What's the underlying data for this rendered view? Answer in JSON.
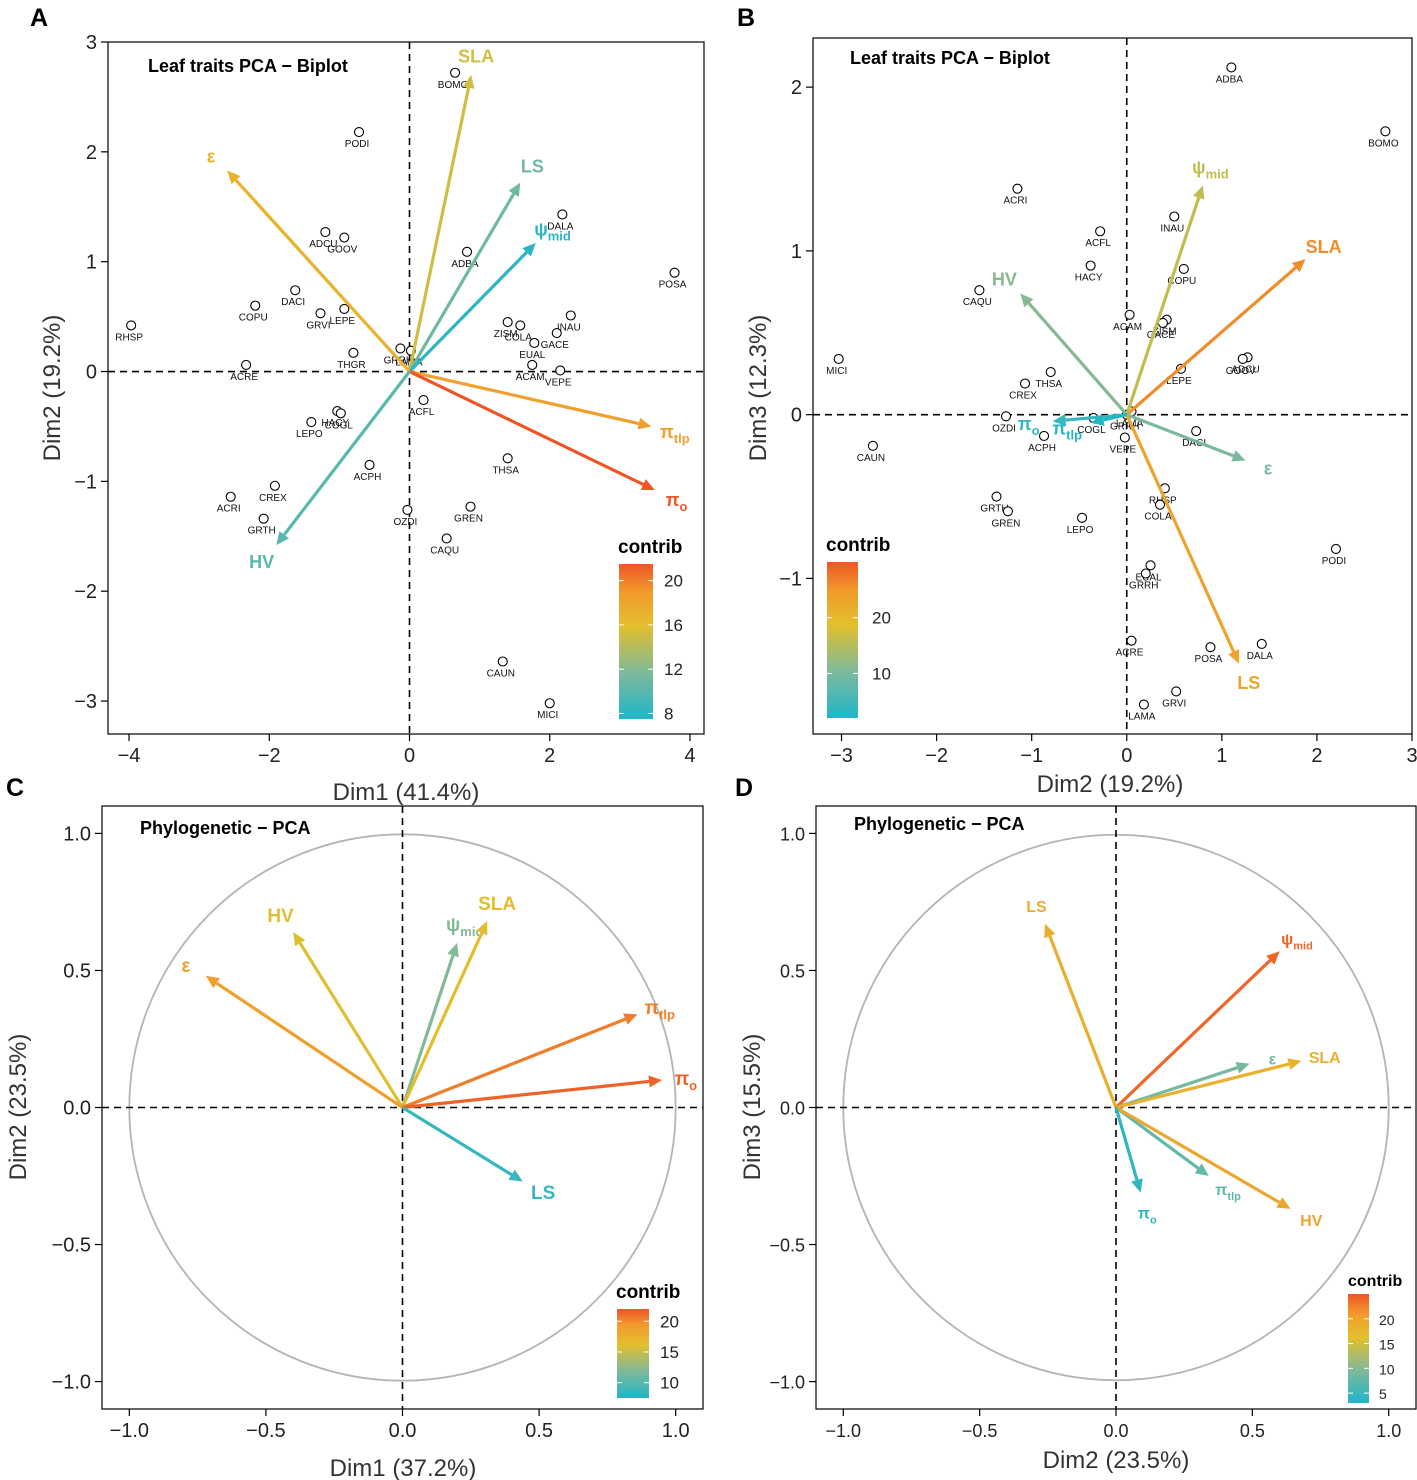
{
  "figure": {
    "panel_labels": [
      "A",
      "B",
      "C",
      "D"
    ]
  },
  "legend": {
    "title": "contrib"
  },
  "chart_data": [
    {
      "panel": "A",
      "type": "scatter",
      "title": "Leaf traits PCA − Biplot",
      "xlabel": "Dim1 (41.4%)",
      "ylabel": "Dim2 (19.2%)",
      "xlim": [
        -4.3,
        4.2
      ],
      "ylim": [
        -3.3,
        3.0
      ],
      "xticks": [
        -4,
        -2,
        0,
        2,
        4
      ],
      "yticks": [
        -3,
        -2,
        -1,
        0,
        1,
        2,
        3
      ],
      "points": [
        {
          "label": "BOMO",
          "x": 0.65,
          "y": 2.72
        },
        {
          "label": "PODI",
          "x": -0.72,
          "y": 2.18
        },
        {
          "label": "DALA",
          "x": 2.18,
          "y": 1.43
        },
        {
          "label": "ADCU",
          "x": -1.2,
          "y": 1.27
        },
        {
          "label": "GOOV",
          "x": -0.93,
          "y": 1.22
        },
        {
          "label": "ADBA",
          "x": 0.82,
          "y": 1.09
        },
        {
          "label": "POSA",
          "x": 3.78,
          "y": 0.9
        },
        {
          "label": "DACI",
          "x": -1.63,
          "y": 0.74
        },
        {
          "label": "LEPE",
          "x": -0.93,
          "y": 0.57
        },
        {
          "label": "COPU",
          "x": -2.2,
          "y": 0.6
        },
        {
          "label": "GRVI",
          "x": -1.27,
          "y": 0.53
        },
        {
          "label": "INAU",
          "x": 2.3,
          "y": 0.51
        },
        {
          "label": "ZISM",
          "x": 1.4,
          "y": 0.45
        },
        {
          "label": "COLA",
          "x": 1.58,
          "y": 0.42
        },
        {
          "label": "GACE",
          "x": 2.1,
          "y": 0.35
        },
        {
          "label": "RHSP",
          "x": -3.97,
          "y": 0.42
        },
        {
          "label": "GRRH",
          "x": -0.13,
          "y": 0.21
        },
        {
          "label": "THGR",
          "x": -0.8,
          "y": 0.17
        },
        {
          "label": "LAMA",
          "x": 0.02,
          "y": 0.19
        },
        {
          "label": "EUAL",
          "x": 1.78,
          "y": 0.26
        },
        {
          "label": "ACAM",
          "x": 1.75,
          "y": 0.06
        },
        {
          "label": "VEPE",
          "x": 2.15,
          "y": 0.01
        },
        {
          "label": "ACRE",
          "x": -2.33,
          "y": 0.06
        },
        {
          "label": "HACY",
          "x": -1.03,
          "y": -0.36
        },
        {
          "label": "COGL",
          "x": -0.98,
          "y": -0.38
        },
        {
          "label": "LEPO",
          "x": -1.4,
          "y": -0.46
        },
        {
          "label": "ACFL",
          "x": 0.2,
          "y": -0.26
        },
        {
          "label": "THSA",
          "x": 1.4,
          "y": -0.79
        },
        {
          "label": "ACPH",
          "x": -0.57,
          "y": -0.85
        },
        {
          "label": "CREX",
          "x": -1.92,
          "y": -1.04
        },
        {
          "label": "ACRI",
          "x": -2.55,
          "y": -1.14
        },
        {
          "label": "GRTH",
          "x": -2.08,
          "y": -1.34
        },
        {
          "label": "OZDI",
          "x": -0.03,
          "y": -1.26
        },
        {
          "label": "GREN",
          "x": 0.87,
          "y": -1.23
        },
        {
          "label": "CAQU",
          "x": 0.53,
          "y": -1.52
        },
        {
          "label": "CAUN",
          "x": 1.33,
          "y": -2.64
        },
        {
          "label": "MICI",
          "x": 2.0,
          "y": -3.02
        }
      ],
      "vectors": [
        {
          "label": "SLA",
          "x": 0.88,
          "y": 2.7,
          "contrib": 15.0
        },
        {
          "label": "LS",
          "x": 1.58,
          "y": 1.72,
          "contrib": 11.0
        },
        {
          "label": "ψ",
          "sub": "mid",
          "x": 1.8,
          "y": 1.17,
          "contrib": 8.0
        },
        {
          "label": "ε",
          "sub": "",
          "x": -2.6,
          "y": 1.83,
          "contrib": 17.0
        },
        {
          "label": "π",
          "sub": "tlp",
          "x": 3.45,
          "y": -0.5,
          "contrib": 18.5
        },
        {
          "label": "π",
          "sub": "o",
          "x": 3.5,
          "y": -1.08,
          "contrib": 21.5
        },
        {
          "label": "HV",
          "x": -1.9,
          "y": -1.58,
          "contrib": 10.0
        }
      ],
      "legend": {
        "ticks": [
          8,
          12,
          16,
          20
        ],
        "range": [
          7.5,
          21.5
        ]
      }
    },
    {
      "panel": "B",
      "type": "scatter",
      "title": "Leaf traits PCA − Biplot",
      "xlabel": "Dim2 (19.2%)",
      "ylabel": "Dim3 (12.3%)",
      "xlim": [
        -3.3,
        3.0
      ],
      "ylim": [
        -1.95,
        2.3
      ],
      "xticks": [
        -3,
        -2,
        -1,
        0,
        1,
        2,
        3
      ],
      "yticks": [
        -1,
        0,
        1,
        2
      ],
      "points": [
        {
          "label": "ADBA",
          "x": 1.1,
          "y": 2.12
        },
        {
          "label": "BOMO",
          "x": 2.72,
          "y": 1.73
        },
        {
          "label": "ACRI",
          "x": -1.15,
          "y": 1.38
        },
        {
          "label": "INAU",
          "x": 0.5,
          "y": 1.21
        },
        {
          "label": "ACFL",
          "x": -0.28,
          "y": 1.12
        },
        {
          "label": "HACY",
          "x": -0.38,
          "y": 0.91
        },
        {
          "label": "COPU",
          "x": 0.6,
          "y": 0.89
        },
        {
          "label": "CAQU",
          "x": -1.55,
          "y": 0.76
        },
        {
          "label": "ACAM",
          "x": 0.03,
          "y": 0.61
        },
        {
          "label": "ZISM",
          "x": 0.42,
          "y": 0.58
        },
        {
          "label": "GACE",
          "x": 0.38,
          "y": 0.56
        },
        {
          "label": "MICI",
          "x": -3.03,
          "y": 0.34
        },
        {
          "label": "ADCU",
          "x": 1.27,
          "y": 0.35
        },
        {
          "label": "GOOV",
          "x": 1.22,
          "y": 0.34
        },
        {
          "label": "LEPE",
          "x": 0.57,
          "y": 0.28
        },
        {
          "label": "THSA",
          "x": -0.8,
          "y": 0.26
        },
        {
          "label": "CREX",
          "x": -1.07,
          "y": 0.19
        },
        {
          "label": "GRRH",
          "x": 0.0,
          "y": 0.0
        },
        {
          "label": "LAMA",
          "x": 0.05,
          "y": 0.02
        },
        {
          "label": "OZDI",
          "x": -1.27,
          "y": -0.01
        },
        {
          "label": "COGL",
          "x": -0.35,
          "y": -0.02
        },
        {
          "label": "ACPH",
          "x": -0.87,
          "y": -0.13
        },
        {
          "label": "VEPE",
          "x": -0.02,
          "y": -0.14
        },
        {
          "label": "DACI",
          "x": 0.73,
          "y": -0.1
        },
        {
          "label": "CAUN",
          "x": -2.67,
          "y": -0.19
        },
        {
          "label": "RHSP",
          "x": 0.4,
          "y": -0.45
        },
        {
          "label": "GRTH",
          "x": -1.37,
          "y": -0.5
        },
        {
          "label": "GREN",
          "x": -1.25,
          "y": -0.59
        },
        {
          "label": "COLA",
          "x": 0.35,
          "y": -0.55
        },
        {
          "label": "LEPO",
          "x": -0.47,
          "y": -0.63
        },
        {
          "label": "PODI",
          "x": 2.2,
          "y": -0.82
        },
        {
          "label": "EUAL",
          "x": 0.25,
          "y": -0.92
        },
        {
          "label": "GRRH",
          "x": 0.2,
          "y": -0.97
        },
        {
          "label": "ACRE",
          "x": 0.05,
          "y": -1.38
        },
        {
          "label": "POSA",
          "x": 0.88,
          "y": -1.42
        },
        {
          "label": "DALA",
          "x": 1.42,
          "y": -1.4
        },
        {
          "label": "GRVI",
          "x": 0.52,
          "y": -1.69
        },
        {
          "label": "LAMA",
          "x": 0.18,
          "y": -1.77
        }
      ],
      "vectors": [
        {
          "label": "SLA",
          "x": 1.88,
          "y": 0.95,
          "contrib": 26.0
        },
        {
          "label": "ψ",
          "sub": "mid",
          "x": 0.8,
          "y": 1.4,
          "contrib": 16.0
        },
        {
          "label": "HV",
          "x": -1.12,
          "y": 0.74,
          "contrib": 11.0
        },
        {
          "label": "ε",
          "sub": "",
          "x": 1.25,
          "y": -0.28,
          "contrib": 10.0
        },
        {
          "label": "LS",
          "x": 1.18,
          "y": -1.52,
          "contrib": 23.5
        },
        {
          "label": "π",
          "sub": "o",
          "x": -0.78,
          "y": -0.04,
          "contrib": 4.0
        },
        {
          "label": "π",
          "sub": "tlp",
          "x": -0.38,
          "y": -0.05,
          "contrib": 2.5
        }
      ],
      "legend": {
        "ticks": [
          10,
          20
        ],
        "range": [
          2,
          30
        ]
      }
    },
    {
      "panel": "C",
      "type": "scatter",
      "title": "Phylogenetic − PCA",
      "xlabel": "Dim1 (37.2%)",
      "ylabel": "Dim2 (23.5%)",
      "xlim": [
        -1.1,
        1.1
      ],
      "ylim": [
        -1.1,
        1.1
      ],
      "xticks": [
        -1.0,
        -0.5,
        0.0,
        0.5,
        1.0
      ],
      "yticks": [
        -1.0,
        -0.5,
        0.0,
        0.5,
        1.0
      ],
      "vectors": [
        {
          "label": "HV",
          "x": -0.4,
          "y": 0.64,
          "contrib": 16.0
        },
        {
          "label": "ψ",
          "sub": "mid",
          "x": 0.2,
          "y": 0.6,
          "contrib": 12.0
        },
        {
          "label": "SLA",
          "x": 0.31,
          "y": 0.68,
          "contrib": 16.5
        },
        {
          "label": "ε",
          "sub": "",
          "x": -0.72,
          "y": 0.48,
          "contrib": 19.0
        },
        {
          "label": "π",
          "sub": "tlp",
          "x": 0.86,
          "y": 0.34,
          "contrib": 20.5
        },
        {
          "label": "π",
          "sub": "o",
          "x": 0.95,
          "y": 0.1,
          "contrib": 21.5
        },
        {
          "label": "LS",
          "x": 0.44,
          "y": -0.27,
          "contrib": 8.5
        }
      ],
      "legend": {
        "ticks": [
          10,
          15,
          20
        ],
        "range": [
          7.5,
          22
        ]
      }
    },
    {
      "panel": "D",
      "type": "scatter",
      "title": "Phylogenetic − PCA",
      "xlabel": "Dim2 (23.5%)",
      "ylabel": "Dim3 (15.5%)",
      "xlim": [
        -1.1,
        1.1
      ],
      "ylim": [
        -1.1,
        1.1
      ],
      "xticks": [
        -1.0,
        -0.5,
        0.0,
        0.5,
        1.0
      ],
      "yticks": [
        -1.0,
        -0.5,
        0.0,
        0.5,
        1.0
      ],
      "vectors": [
        {
          "label": "LS",
          "x": -0.26,
          "y": 0.67,
          "contrib": 18.5
        },
        {
          "label": "ψ",
          "sub": "mid",
          "x": 0.6,
          "y": 0.57,
          "contrib": 24.0
        },
        {
          "label": "ε",
          "sub": "",
          "x": 0.49,
          "y": 0.16,
          "contrib": 9.0
        },
        {
          "label": "SLA",
          "x": 0.68,
          "y": 0.17,
          "contrib": 18.0
        },
        {
          "label": "π",
          "sub": "tlp",
          "x": 0.34,
          "y": -0.25,
          "contrib": 7.5
        },
        {
          "label": "HV",
          "x": 0.64,
          "y": -0.37,
          "contrib": 19.5
        },
        {
          "label": "π",
          "sub": "o",
          "x": 0.09,
          "y": -0.31,
          "contrib": 4.0
        }
      ],
      "legend": {
        "ticks": [
          5,
          10,
          15,
          20
        ],
        "range": [
          3,
          25
        ]
      }
    }
  ]
}
